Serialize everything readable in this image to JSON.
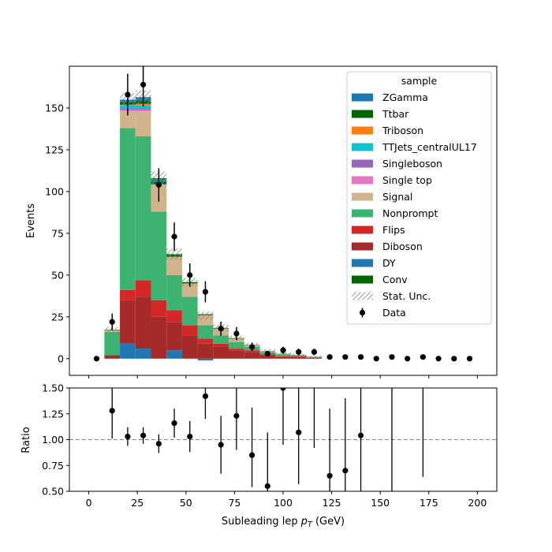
{
  "chart_data": [
    {
      "type": "bar",
      "subtype": "stacked-histogram-with-data-points",
      "title": "",
      "ylabel": "Events",
      "xlim": [
        -10,
        210
      ],
      "ylim": [
        -10,
        175
      ],
      "yticks": [
        0,
        25,
        50,
        75,
        100,
        125,
        150
      ],
      "bin_edges": [
        8,
        16,
        24,
        32,
        40,
        48,
        56,
        64,
        72,
        80,
        88,
        96,
        104,
        112,
        120
      ],
      "stack_order_bottom_to_top": [
        "DY",
        "Diboson",
        "Flips",
        "Nonprompt",
        "Signal",
        "Single top",
        "Singleboson",
        "TTJets_centralUL17",
        "Triboson",
        "Ttbar",
        "ZGamma",
        "Conv"
      ],
      "series": [
        {
          "name": "DY",
          "color": "#1f77b4",
          "values": [
            0,
            9,
            6,
            0,
            5,
            0,
            -1,
            0,
            0,
            0,
            0,
            0,
            0,
            0
          ]
        },
        {
          "name": "Diboson",
          "color": "#a52a2a",
          "values": [
            2,
            26,
            31,
            25,
            17,
            14,
            9,
            7,
            5,
            4,
            2,
            1,
            1,
            0.5
          ]
        },
        {
          "name": "Flips",
          "color": "#d62728",
          "values": [
            0,
            6,
            10,
            10,
            7,
            6,
            3,
            2,
            1,
            1,
            0.5,
            0.5,
            0.5,
            0.3
          ]
        },
        {
          "name": "Nonprompt",
          "color": "#3cb371",
          "values": [
            14,
            97,
            86,
            53,
            21,
            17,
            8,
            5,
            4,
            2,
            1.5,
            1,
            0.5,
            0.3
          ]
        },
        {
          "name": "Signal",
          "color": "#d2b48c",
          "values": [
            1,
            10,
            15,
            16,
            11,
            8,
            6,
            4,
            2,
            1,
            0.5,
            0.3,
            0.2,
            0.1
          ]
        },
        {
          "name": "Single top",
          "color": "#e377c2",
          "values": [
            0,
            1,
            1,
            0,
            0,
            0,
            0,
            0,
            0,
            0,
            0,
            0,
            0,
            0
          ]
        },
        {
          "name": "Singleboson",
          "color": "#9467bd",
          "values": [
            0,
            0.5,
            0.5,
            0,
            0,
            0,
            0,
            0,
            0,
            0,
            0,
            0,
            0,
            0
          ]
        },
        {
          "name": "TTJets_centralUL17",
          "color": "#17becf",
          "values": [
            0,
            2,
            2,
            0.5,
            0,
            0,
            0,
            0,
            0,
            0,
            0,
            0,
            0,
            0
          ]
        },
        {
          "name": "Triboson",
          "color": "#ff7f0e",
          "values": [
            0,
            0.5,
            1,
            0,
            0,
            0,
            0,
            0,
            0,
            0,
            0,
            0,
            0,
            0
          ]
        },
        {
          "name": "Ttbar",
          "color": "#006400",
          "values": [
            0.3,
            1.5,
            2,
            1.5,
            1,
            0.8,
            0.6,
            0.4,
            0.3,
            0.2,
            0.1,
            0.1,
            0.1,
            0
          ]
        },
        {
          "name": "ZGamma",
          "color": "#1f77b4",
          "values": [
            0,
            1.5,
            2,
            1.5,
            0,
            0,
            0,
            0,
            0,
            0,
            0,
            0,
            0,
            0
          ]
        },
        {
          "name": "Conv",
          "color": "#006400",
          "values": [
            0,
            0,
            0,
            0.5,
            0.5,
            0,
            0,
            0,
            0,
            0,
            0,
            0,
            0,
            0
          ]
        }
      ],
      "stat_unc": [
        1.5,
        4,
        4,
        4,
        3.5,
        2.5,
        2.5,
        2,
        1.5,
        1.2,
        1,
        0.8,
        0.6,
        0.5
      ],
      "data": {
        "name": "Data",
        "x": [
          4,
          12,
          20,
          28,
          36,
          44,
          52,
          60,
          68,
          76,
          84,
          92,
          100,
          108,
          116,
          124,
          132,
          140,
          148,
          156,
          164,
          172,
          180,
          188,
          196
        ],
        "y": [
          0,
          22,
          158,
          164,
          104,
          73,
          50,
          40,
          18,
          15,
          7,
          3,
          5,
          4,
          4,
          1,
          1,
          1,
          0,
          1,
          0,
          1,
          0,
          0,
          0
        ],
        "err": [
          0,
          5,
          12.5,
          13,
          10,
          8.5,
          7,
          6.3,
          4.2,
          3.9,
          2.6,
          1.7,
          2.2,
          2,
          2,
          1,
          1,
          1,
          0,
          1,
          0,
          1,
          0,
          0,
          0
        ]
      },
      "legend": {
        "title": "sample",
        "position": "upper right",
        "entries": [
          {
            "label": "ZGamma",
            "kind": "patch",
            "color": "#1f77b4"
          },
          {
            "label": "Ttbar",
            "kind": "patch",
            "color": "#006400"
          },
          {
            "label": "Triboson",
            "kind": "patch",
            "color": "#ff7f0e"
          },
          {
            "label": "TTJets_centralUL17",
            "kind": "patch",
            "color": "#17becf"
          },
          {
            "label": "Singleboson",
            "kind": "patch",
            "color": "#9467bd"
          },
          {
            "label": "Single top",
            "kind": "patch",
            "color": "#e377c2"
          },
          {
            "label": "Signal",
            "kind": "patch",
            "color": "#d2b48c"
          },
          {
            "label": "Nonprompt",
            "kind": "patch",
            "color": "#3cb371"
          },
          {
            "label": "Flips",
            "kind": "patch",
            "color": "#d62728"
          },
          {
            "label": "Diboson",
            "kind": "patch",
            "color": "#a52a2a"
          },
          {
            "label": "DY",
            "kind": "patch",
            "color": "#1f77b4"
          },
          {
            "label": "Conv",
            "kind": "patch",
            "color": "#006400"
          },
          {
            "label": "Stat. Unc.",
            "kind": "hatch",
            "color": "#999999"
          },
          {
            "label": "Data",
            "kind": "errorbar",
            "color": "#000000"
          }
        ]
      }
    },
    {
      "type": "scatter",
      "subtype": "ratio-panel",
      "ylabel": "Ratio",
      "xlabel_prefix": "Subleading lep",
      "xlabel_var": "p",
      "xlabel_sub": "T",
      "xlabel_suffix": "(GeV)",
      "xlim": [
        -10,
        210
      ],
      "ylim": [
        0.5,
        1.5
      ],
      "xticks": [
        0,
        25,
        50,
        75,
        100,
        125,
        150,
        175,
        200
      ],
      "yticks": [
        0.5,
        0.75,
        1.0,
        1.25,
        1.5
      ],
      "ytick_labels": [
        "0.50",
        "0.75",
        "1.00",
        "1.25",
        "1.50"
      ],
      "reference_line": 1.0,
      "x": [
        12,
        20,
        28,
        36,
        44,
        52,
        60,
        68,
        76,
        84,
        92,
        100,
        108,
        116,
        124,
        132,
        140,
        156,
        172
      ],
      "y": [
        1.28,
        1.03,
        1.04,
        0.96,
        1.16,
        1.03,
        1.42,
        0.95,
        1.23,
        0.85,
        0.55,
        1.5,
        1.07,
        null,
        0.65,
        0.7,
        1.04,
        null,
        null
      ],
      "err_lo": [
        0.27,
        0.09,
        0.08,
        0.09,
        0.14,
        0.15,
        0.22,
        0.28,
        0.33,
        0.31,
        0.55,
        0.55,
        0.5,
        null,
        0.65,
        0.7,
        1.04,
        null,
        null
      ],
      "err_hi": [
        0.27,
        0.09,
        0.08,
        0.09,
        0.14,
        0.15,
        0.22,
        0.28,
        0.33,
        0.46,
        0.52,
        0.55,
        0.5,
        null,
        0.65,
        0.7,
        1.04,
        null,
        null
      ],
      "vertical_err_lines": [
        {
          "x": 116,
          "lo": 0.92,
          "hi": 1.5
        },
        {
          "x": 156,
          "lo": 0.5,
          "hi": 1.5
        },
        {
          "x": 172,
          "lo": 0.64,
          "hi": 1.5
        }
      ]
    }
  ]
}
